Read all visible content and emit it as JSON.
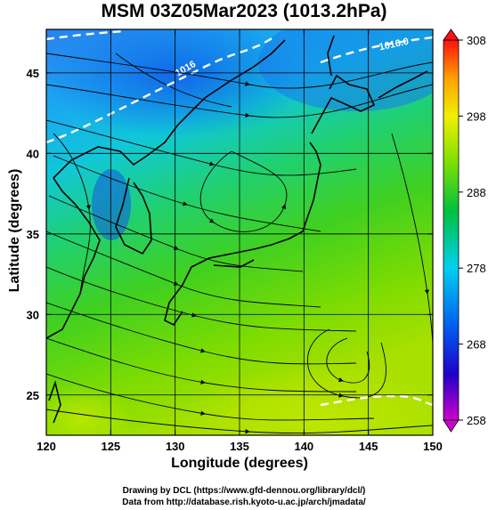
{
  "chart_data": {
    "type": "heatmap",
    "title": "MSM 03Z05Mar2023 (1013.2hPa)",
    "xlabel": "Longitude (degrees)",
    "ylabel": "Latitude  (degrees)",
    "xlim": [
      120,
      150
    ],
    "ylim": [
      22.5,
      47.7
    ],
    "x_ticks": [
      120,
      125,
      130,
      135,
      140,
      145,
      150
    ],
    "y_ticks": [
      25,
      30,
      35,
      40,
      45
    ],
    "grid": true,
    "colorbar": {
      "range": [
        258,
        308
      ],
      "ticks": [
        258,
        268,
        278,
        288,
        298,
        308
      ],
      "colors": [
        "#cc00cc",
        "#0000cc",
        "#0088ee",
        "#00d8e8",
        "#00c84a",
        "#88e000",
        "#e0e000",
        "#ffa000",
        "#ff2000"
      ]
    },
    "contour_labels": [
      {
        "text": "1016.0",
        "lon": 145.0,
        "lat": 46.6
      },
      {
        "text": "1016",
        "lon": 131.0,
        "lat": 44.5
      }
    ],
    "surface_colors": {
      "cold_north": "#1a78f0",
      "cyan_mid": "#10c8d8",
      "green_south": "#30d020",
      "yellow_south": "#a8e000"
    }
  },
  "credits": {
    "line1": "Drawing by DCL (https://www.gfd-dennou.org/library/dcl/)",
    "line2": "Data from http://database.rish.kyoto-u.ac.jp/arch/jmadata/"
  }
}
